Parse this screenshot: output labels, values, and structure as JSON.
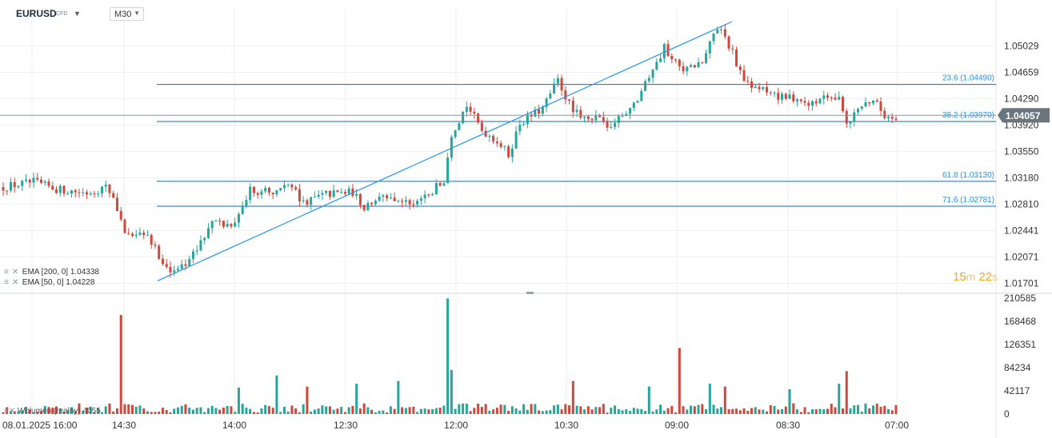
{
  "instrument": {
    "symbol": "EURUSD",
    "type": "CFD"
  },
  "timeframe": "M30",
  "colors": {
    "up": "#26a69a",
    "down": "#d3463a",
    "fib_line": "#1565c0",
    "trend_line": "#2196f3",
    "price_label_bg": "#6b7580",
    "timer": "#f5a623",
    "grid": "#eef0f2"
  },
  "current_price": "1.04057",
  "countdown": {
    "minutes": "15",
    "minute_unit": "m",
    "seconds": "22",
    "second_unit": "s"
  },
  "indicators": [
    {
      "name": "EMA [200, 0]",
      "value": "1.04338"
    },
    {
      "name": "EMA [50, 0]",
      "value": "1.04228"
    }
  ],
  "volume_legend": {
    "name": "Wolumen (realny)",
    "value": "4055"
  },
  "fibonacci_levels": [
    {
      "label": "23.6 (1.04490)",
      "price": 1.0449
    },
    {
      "label": "38.2 (1.03970)",
      "price": 1.0397
    },
    {
      "label": "61.8 (1.03130)",
      "price": 1.0313
    },
    {
      "label": "71.6 (1.02781)",
      "price": 1.02781
    }
  ],
  "chart_data": {
    "type": "candlestick",
    "price_axis_ticks": [
      "1.05029",
      "1.04659",
      "1.04290",
      "1.03920",
      "1.03550",
      "1.03180",
      "1.02810",
      "1.02441",
      "1.02071",
      "1.01701"
    ],
    "price_range": [
      1.0157,
      1.0545
    ],
    "volume_axis_ticks": [
      "210585",
      "168468",
      "126351",
      "84234",
      "42117",
      "0"
    ],
    "volume_range": [
      0,
      210585
    ],
    "time_axis_labels": [
      "08.01.2025  16:00",
      "14:30",
      "14:00",
      "12:30",
      "12:00",
      "10:30",
      "09:00",
      "08:30",
      "07:00"
    ],
    "price_path": [
      {
        "t": 0,
        "p": 1.0305
      },
      {
        "t": 8,
        "p": 1.0312
      },
      {
        "t": 14,
        "p": 1.0302
      },
      {
        "t": 22,
        "p": 1.0297
      },
      {
        "t": 27,
        "p": 1.0305
      },
      {
        "t": 29,
        "p": 1.0292
      },
      {
        "t": 32,
        "p": 1.0238
      },
      {
        "t": 38,
        "p": 1.0235
      },
      {
        "t": 42,
        "p": 1.02
      },
      {
        "t": 45,
        "p": 1.0185
      },
      {
        "t": 50,
        "p": 1.021
      },
      {
        "t": 55,
        "p": 1.0255
      },
      {
        "t": 60,
        "p": 1.025
      },
      {
        "t": 65,
        "p": 1.03
      },
      {
        "t": 72,
        "p": 1.03
      },
      {
        "t": 76,
        "p": 1.031
      },
      {
        "t": 78,
        "p": 1.0282
      },
      {
        "t": 85,
        "p": 1.0295
      },
      {
        "t": 92,
        "p": 1.0298
      },
      {
        "t": 95,
        "p": 1.0275
      },
      {
        "t": 100,
        "p": 1.0292
      },
      {
        "t": 105,
        "p": 1.0286
      },
      {
        "t": 108,
        "p": 1.0275
      },
      {
        "t": 116,
        "p": 1.0315
      },
      {
        "t": 118,
        "p": 1.038
      },
      {
        "t": 122,
        "p": 1.042
      },
      {
        "t": 126,
        "p": 1.0385
      },
      {
        "t": 130,
        "p": 1.037
      },
      {
        "t": 133,
        "p": 1.035
      },
      {
        "t": 136,
        "p": 1.0395
      },
      {
        "t": 142,
        "p": 1.0415
      },
      {
        "t": 146,
        "p": 1.0455
      },
      {
        "t": 150,
        "p": 1.041
      },
      {
        "t": 156,
        "p": 1.04
      },
      {
        "t": 160,
        "p": 1.039
      },
      {
        "t": 166,
        "p": 1.042
      },
      {
        "t": 170,
        "p": 1.046
      },
      {
        "t": 174,
        "p": 1.05
      },
      {
        "t": 177,
        "p": 1.048
      },
      {
        "t": 180,
        "p": 1.047
      },
      {
        "t": 184,
        "p": 1.048
      },
      {
        "t": 188,
        "p": 1.053
      },
      {
        "t": 192,
        "p": 1.0495
      },
      {
        "t": 195,
        "p": 1.045
      },
      {
        "t": 200,
        "p": 1.044
      },
      {
        "t": 206,
        "p": 1.043
      },
      {
        "t": 212,
        "p": 1.0425
      },
      {
        "t": 216,
        "p": 1.043
      },
      {
        "t": 220,
        "p": 1.0435
      },
      {
        "t": 222,
        "p": 1.0395
      },
      {
        "t": 226,
        "p": 1.042
      },
      {
        "t": 229,
        "p": 1.0428
      },
      {
        "t": 232,
        "p": 1.0405
      }
    ],
    "trend_line": {
      "from_price": 1.01735,
      "to_price": 1.0537
    },
    "volume_spikes": [
      {
        "t": 31,
        "v": 180000
      },
      {
        "t": 62,
        "v": 48000
      },
      {
        "t": 72,
        "v": 70000
      },
      {
        "t": 80,
        "v": 50000
      },
      {
        "t": 93,
        "v": 55000
      },
      {
        "t": 104,
        "v": 60000
      },
      {
        "t": 117,
        "v": 210000
      },
      {
        "t": 118,
        "v": 80000
      },
      {
        "t": 150,
        "v": 60000
      },
      {
        "t": 170,
        "v": 50000
      },
      {
        "t": 178,
        "v": 120000
      },
      {
        "t": 186,
        "v": 55000
      },
      {
        "t": 190,
        "v": 50000
      },
      {
        "t": 207,
        "v": 45000
      },
      {
        "t": 220,
        "v": 55000
      },
      {
        "t": 222,
        "v": 78000
      }
    ]
  }
}
